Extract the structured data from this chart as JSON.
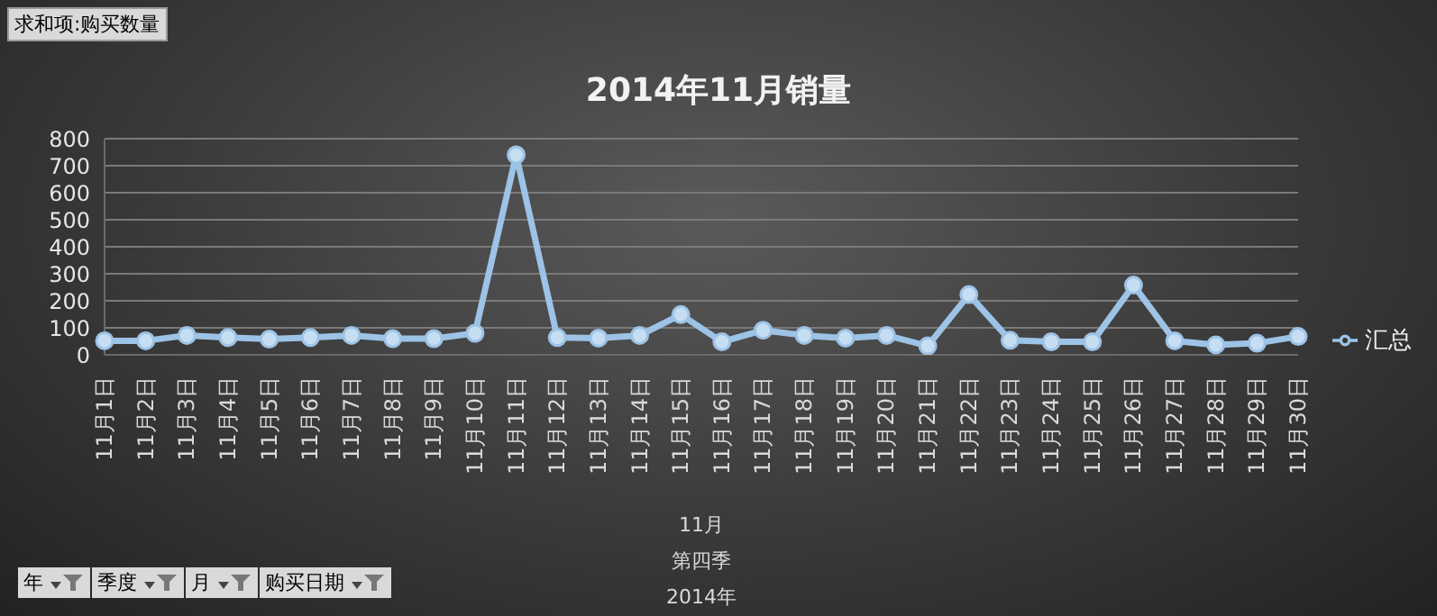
{
  "chart_data": {
    "type": "line",
    "title": "2014年11月销量",
    "categories": [
      "11月1日",
      "11月2日",
      "11月3日",
      "11月4日",
      "11月5日",
      "11月6日",
      "11月7日",
      "11月8日",
      "11月9日",
      "11月10日",
      "11月11日",
      "11月12日",
      "11月13日",
      "11月14日",
      "11月15日",
      "11月16日",
      "11月17日",
      "11月18日",
      "11月19日",
      "11月20日",
      "11月21日",
      "11月22日",
      "11月23日",
      "11月24日",
      "11月25日",
      "11月26日",
      "11月27日",
      "11月28日",
      "11月29日",
      "11月30日"
    ],
    "series": [
      {
        "name": "汇总",
        "color": "#9dc3e6",
        "values": [
          52,
          52,
          72,
          64,
          58,
          64,
          72,
          60,
          60,
          80,
          740,
          64,
          62,
          72,
          149,
          48,
          91,
          72,
          62,
          72,
          33,
          223,
          54,
          48,
          48,
          258,
          52,
          37,
          43,
          68
        ]
      }
    ],
    "ylim": [
      0,
      800
    ],
    "yticks": [
      0,
      100,
      200,
      300,
      400,
      500,
      600,
      700,
      800
    ],
    "grid": "y",
    "legend": "right",
    "marker": "circle",
    "line_style": "solid",
    "annotations": [
      "求和项:购买数量",
      "11月",
      "第四季",
      "2014年",
      "年",
      "季度",
      "月",
      "购买日期"
    ]
  }
}
